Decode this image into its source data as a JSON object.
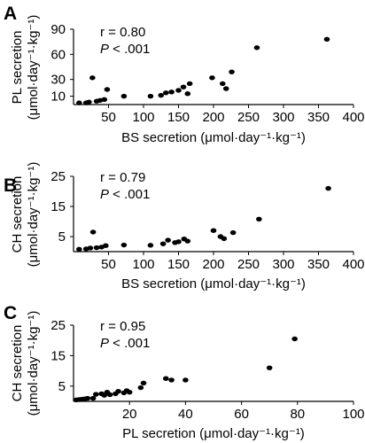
{
  "chart_data": [
    {
      "type": "scatter",
      "panel_label": "A",
      "xlabel": "BS secretion (μmol·day⁻¹·kg⁻¹)",
      "ylabel_line1": "PL secretion",
      "ylabel_line2": "(μmol·day⁻¹·kg⁻¹)",
      "xlim": [
        0,
        400
      ],
      "ylim": [
        0,
        90
      ],
      "xticks": [
        50,
        100,
        150,
        200,
        250,
        300,
        350,
        400
      ],
      "yticks": [
        10,
        30,
        60,
        90
      ],
      "stats_r": "r = 0.80",
      "stats_p_symbol": "P",
      "stats_p_rest": " < .001",
      "points": [
        [
          8,
          2
        ],
        [
          18,
          2
        ],
        [
          22,
          3
        ],
        [
          27,
          32
        ],
        [
          33,
          4
        ],
        [
          38,
          5
        ],
        [
          44,
          6
        ],
        [
          48,
          18
        ],
        [
          72,
          10
        ],
        [
          110,
          10
        ],
        [
          125,
          11
        ],
        [
          132,
          14
        ],
        [
          140,
          15
        ],
        [
          150,
          17
        ],
        [
          157,
          21
        ],
        [
          163,
          13
        ],
        [
          166,
          25
        ],
        [
          198,
          32
        ],
        [
          213,
          25
        ],
        [
          218,
          19
        ],
        [
          226,
          39
        ],
        [
          262,
          68
        ],
        [
          362,
          78
        ]
      ]
    },
    {
      "type": "scatter",
      "panel_label": "B",
      "xlabel": "BS secretion (μmol·day⁻¹·kg⁻¹)",
      "ylabel_line1": "CH secretion",
      "ylabel_line2": "(μmol·day⁻¹·kg⁻¹)",
      "xlim": [
        0,
        400
      ],
      "ylim": [
        0,
        25
      ],
      "xticks": [
        50,
        100,
        150,
        200,
        250,
        300,
        350,
        400
      ],
      "yticks": [
        5,
        15,
        25
      ],
      "stats_r": "r = 0.79",
      "stats_p_symbol": "P",
      "stats_p_rest": " < .001",
      "points": [
        [
          8,
          0.8
        ],
        [
          18,
          0.9
        ],
        [
          24,
          1.2
        ],
        [
          28,
          6.5
        ],
        [
          33,
          1.3
        ],
        [
          40,
          1.5
        ],
        [
          46,
          2.0
        ],
        [
          72,
          2.2
        ],
        [
          110,
          2.1
        ],
        [
          128,
          2.6
        ],
        [
          135,
          3.8
        ],
        [
          145,
          3.0
        ],
        [
          150,
          3.3
        ],
        [
          158,
          4.2
        ],
        [
          163,
          3.5
        ],
        [
          200,
          7.0
        ],
        [
          210,
          5.0
        ],
        [
          215,
          4.3
        ],
        [
          228,
          6.3
        ],
        [
          265,
          10.8
        ],
        [
          364,
          21
        ]
      ]
    },
    {
      "type": "scatter",
      "panel_label": "C",
      "xlabel": "PL secretion (μmol·day⁻¹·kg⁻¹)",
      "ylabel_line1": "CH secretion",
      "ylabel_line2": "(μmol·day⁻¹·kg⁻¹)",
      "xlim": [
        0,
        100
      ],
      "ylim": [
        0,
        25
      ],
      "xticks": [
        20,
        40,
        60,
        80,
        100
      ],
      "yticks": [
        5,
        15,
        25
      ],
      "stats_r": "r = 0.95",
      "stats_p_symbol": "P",
      "stats_p_rest": " < .001",
      "points": [
        [
          1,
          0.5
        ],
        [
          2,
          0.6
        ],
        [
          3,
          0.7
        ],
        [
          4,
          0.8
        ],
        [
          5,
          1.0
        ],
        [
          7,
          1.0
        ],
        [
          8,
          2.3
        ],
        [
          10,
          2.5
        ],
        [
          11,
          2.0
        ],
        [
          12,
          3.0
        ],
        [
          13,
          2.2
        ],
        [
          15,
          2.5
        ],
        [
          16,
          3.3
        ],
        [
          18,
          2.8
        ],
        [
          19,
          3.5
        ],
        [
          20,
          3.0
        ],
        [
          24,
          4.5
        ],
        [
          25,
          6.0
        ],
        [
          33,
          7.5
        ],
        [
          35,
          7.0
        ],
        [
          40,
          7.0
        ],
        [
          70,
          11.0
        ],
        [
          79,
          20.5
        ]
      ]
    }
  ]
}
